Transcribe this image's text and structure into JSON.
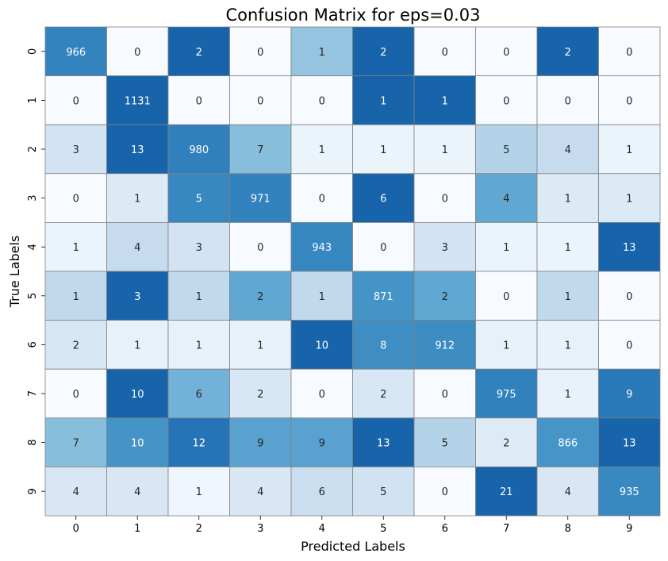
{
  "chart_data": {
    "type": "heatmap",
    "title": "Confusion Matrix for eps=0.03",
    "xlabel": "Predicted Labels",
    "ylabel": "True Labels",
    "x_categories": [
      "0",
      "1",
      "2",
      "3",
      "4",
      "5",
      "6",
      "7",
      "8",
      "9"
    ],
    "y_categories": [
      "0",
      "1",
      "2",
      "3",
      "4",
      "5",
      "6",
      "7",
      "8",
      "9"
    ],
    "colormap": "Blues",
    "normalization": "row",
    "annotations": true,
    "colorbar": false,
    "cell_border_color": "#808080",
    "values": [
      [
        966,
        0,
        2,
        0,
        1,
        2,
        0,
        0,
        2,
        0
      ],
      [
        0,
        1131,
        0,
        0,
        0,
        1,
        1,
        0,
        0,
        0
      ],
      [
        3,
        13,
        980,
        7,
        1,
        1,
        1,
        5,
        4,
        1
      ],
      [
        0,
        1,
        5,
        971,
        0,
        6,
        0,
        4,
        1,
        1
      ],
      [
        1,
        4,
        3,
        0,
        943,
        0,
        3,
        1,
        1,
        13
      ],
      [
        1,
        3,
        1,
        2,
        1,
        871,
        2,
        0,
        1,
        0
      ],
      [
        2,
        1,
        1,
        1,
        10,
        8,
        912,
        1,
        1,
        0
      ],
      [
        0,
        10,
        6,
        2,
        0,
        2,
        0,
        975,
        1,
        9
      ],
      [
        7,
        10,
        12,
        9,
        9,
        13,
        5,
        2,
        866,
        13
      ],
      [
        4,
        4,
        1,
        4,
        6,
        5,
        0,
        21,
        4,
        935
      ]
    ]
  }
}
